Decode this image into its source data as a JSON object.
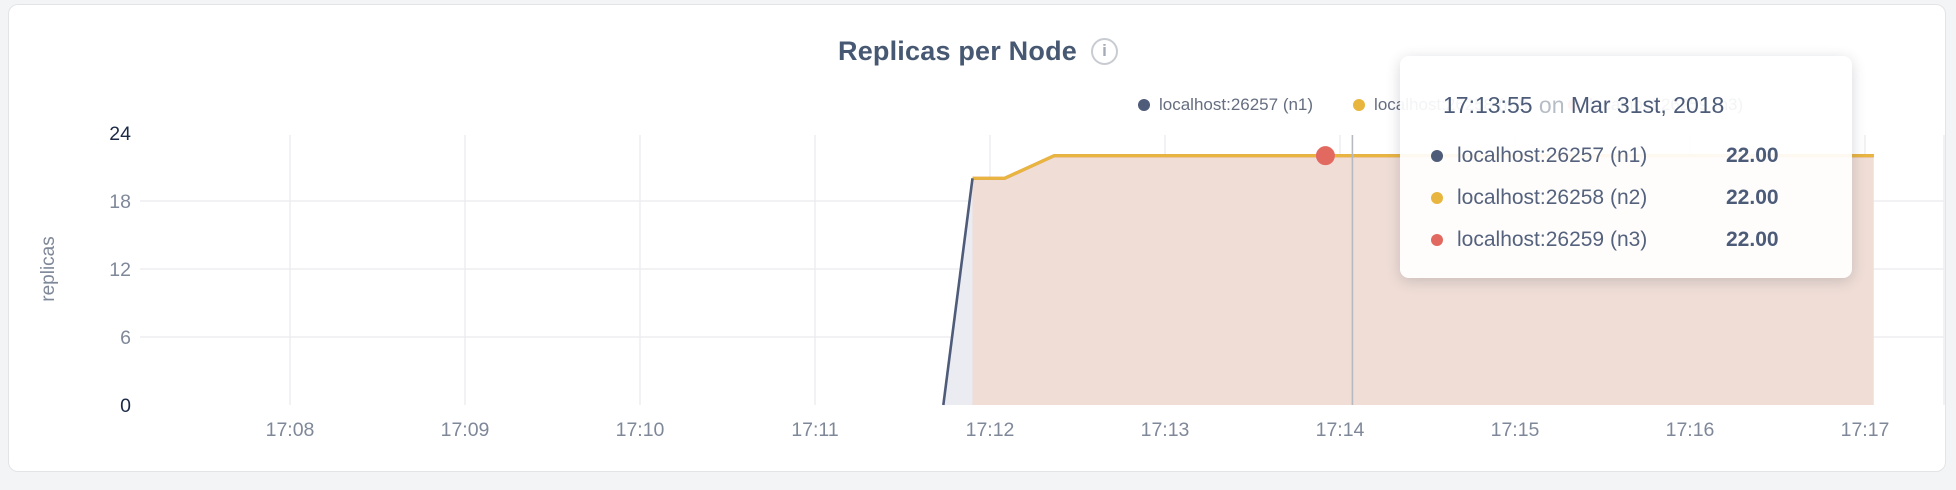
{
  "header": {
    "title": "Replicas per Node",
    "info_icon_glyph": "i"
  },
  "axis": {
    "ylabel": "replicas"
  },
  "tooltip": {
    "time": "17:13:55",
    "on_word": "on",
    "date": "Mar 31st, 2018"
  },
  "colors": {
    "page_background": "#f3f4f5",
    "panel_background": "#ffffff",
    "panel_border": "#e3e4e6",
    "title_text": "#475872",
    "tick_gray": "#7f8899",
    "tick_dark": "#1d2a47",
    "gridline": "#ebebee",
    "hover_guideline": "#b6b9bf",
    "series_n1": "#4e5b79",
    "series_n1_fill": "#eaecf2",
    "series_n2": "#e8b63e",
    "series_n3": "#e2695f",
    "series_n3_fill": "#efddd6"
  },
  "chart_data": {
    "type": "area",
    "title": "Replicas per Node",
    "xlabel": "",
    "ylabel": "replicas",
    "x_ticks": [
      "17:08",
      "17:09",
      "17:10",
      "17:11",
      "17:12",
      "17:13",
      "17:14",
      "17:15",
      "17:16",
      "17:17"
    ],
    "y_ticks": [
      0,
      6,
      12,
      18,
      24
    ],
    "ylim": [
      0,
      24
    ],
    "grid": true,
    "legend_position": "top-right",
    "series": [
      {
        "name": "localhost:26257 (n1)",
        "node": "n1",
        "color": "#4e5b79",
        "fill": "#eaecf2",
        "points": [
          [
            "17:11:44",
            0
          ],
          [
            "17:11:54",
            20
          ]
        ]
      },
      {
        "name": "localhost:26258 (n2)",
        "node": "n2",
        "color": "#e8b63e",
        "fill": null,
        "points": [
          [
            "17:11:54",
            20
          ],
          [
            "17:12:05",
            20
          ],
          [
            "17:12:22",
            22
          ],
          [
            "17:17:03",
            22
          ]
        ]
      },
      {
        "name": "localhost:26259 (n3)",
        "node": "n3",
        "color": "#e2695f",
        "fill": "#efddd6",
        "points": [
          [
            "17:11:54",
            20
          ],
          [
            "17:12:05",
            20
          ],
          [
            "17:12:22",
            22
          ],
          [
            "17:17:03",
            22
          ]
        ]
      }
    ],
    "hover": {
      "time": "17:13:55",
      "date": "Mar 31st, 2018",
      "point_value": 22,
      "values": [
        "22.00",
        "22.00",
        "22.00"
      ]
    }
  }
}
